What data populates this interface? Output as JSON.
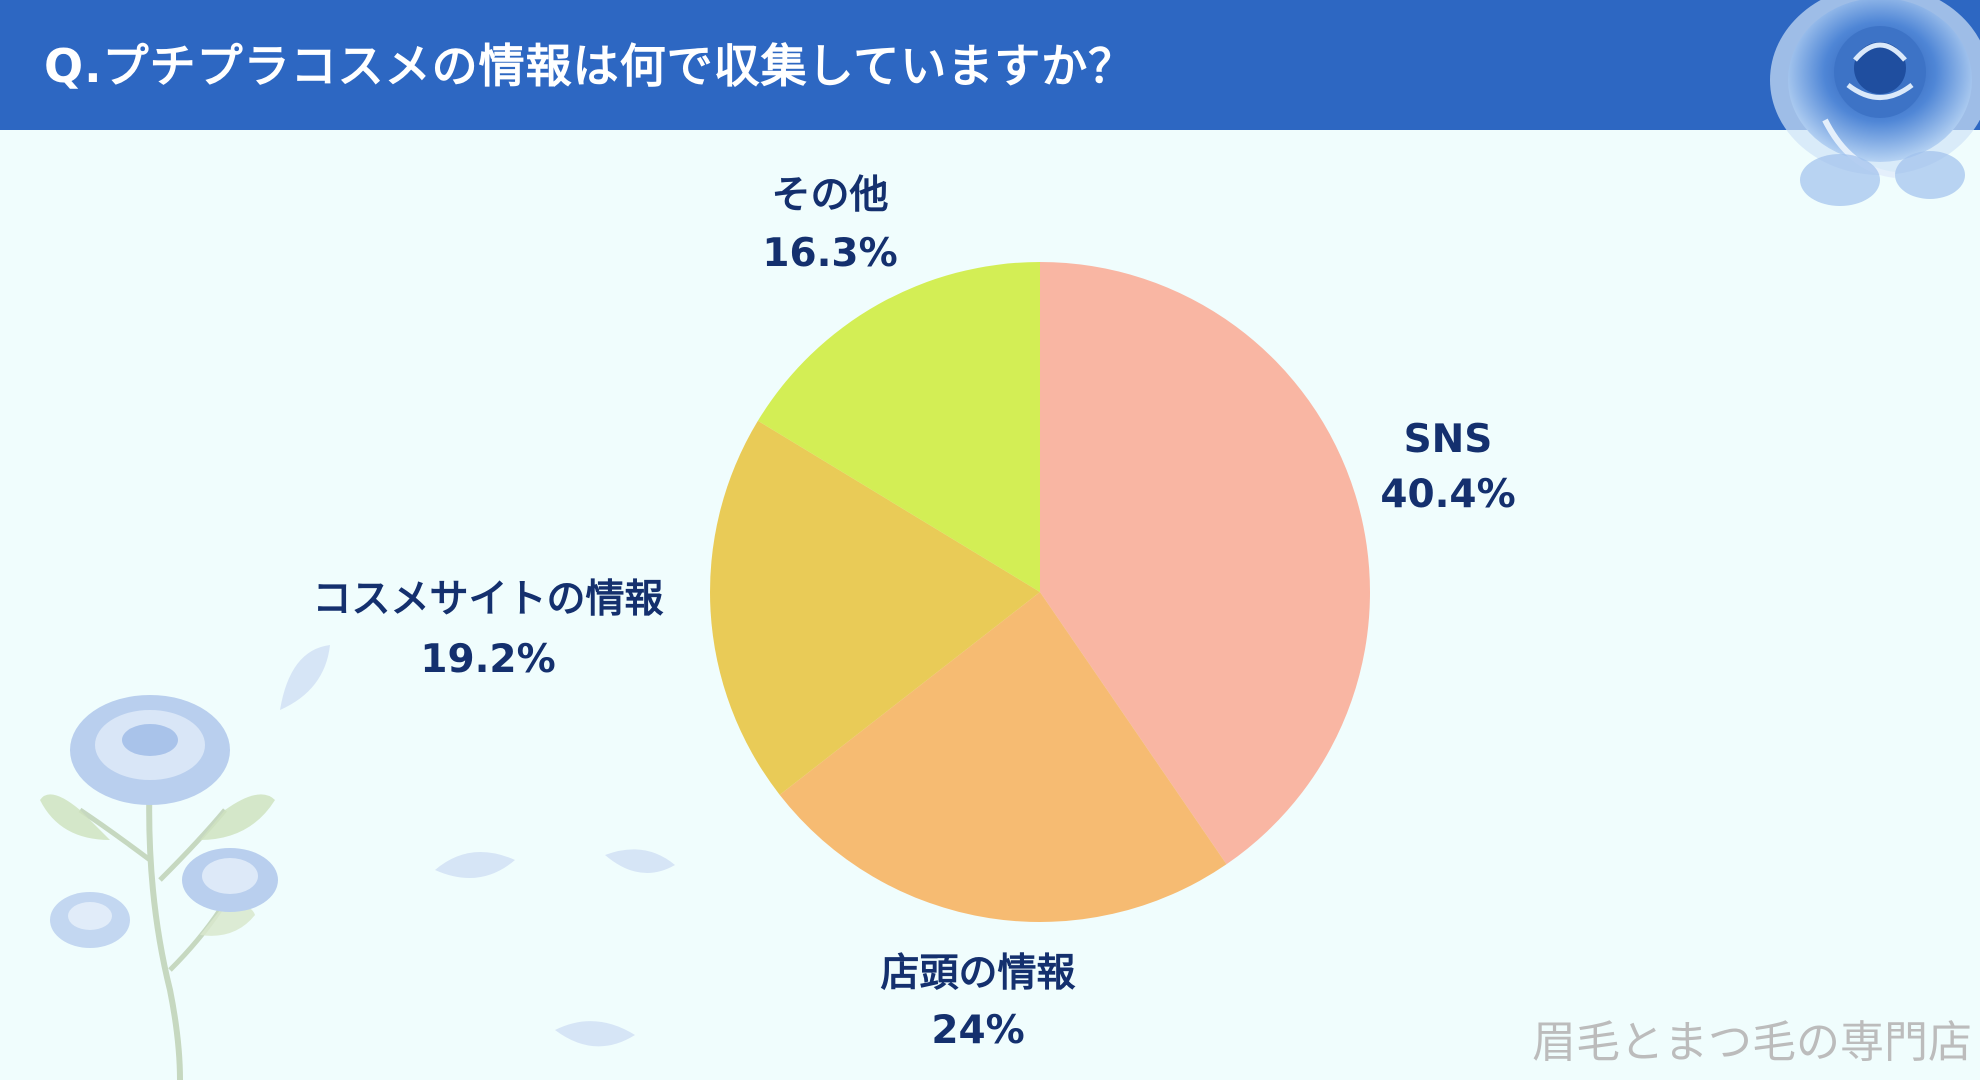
{
  "header": {
    "title": "Q.プチプラコスメの情報は何で収集していますか？"
  },
  "chart_data": {
    "type": "pie",
    "title": "Q.プチプラコスメの情報は何で収集していますか？",
    "start_angle_deg": 0,
    "direction": "clockwise",
    "slices": [
      {
        "name": "SNS",
        "value": 40.4,
        "value_label": "40.4%",
        "color": "#f9b6a3"
      },
      {
        "name": "店頭の情報",
        "value": 24,
        "value_label": "24%",
        "color": "#f6bb72"
      },
      {
        "name": "コスメサイトの情報",
        "value": 19.2,
        "value_label": "19.2%",
        "color": "#e9cb57"
      },
      {
        "name": "その他",
        "value": 16.3,
        "value_label": "16.3%",
        "color": "#d3ee55"
      }
    ],
    "legend": "none"
  },
  "watermark": {
    "text": "眉毛とまつ毛の専門店"
  },
  "colors": {
    "header_bg": "#2d67c2",
    "page_bg": "#f0fdfd",
    "label_text": "#14306e",
    "watermark": "#bcbcbc"
  },
  "decorations": {
    "top_right": "blue-rose-illustration",
    "bottom_left": "blue-rose-stem-illustration",
    "petals": "falling-petal-illustrations"
  }
}
